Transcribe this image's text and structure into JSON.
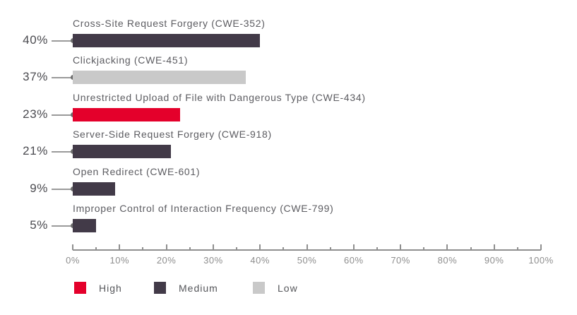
{
  "chart_data": {
    "type": "bar",
    "orientation": "horizontal",
    "title": "",
    "xlabel": "",
    "ylabel": "",
    "xlim": [
      0,
      100
    ],
    "x_tick_labels": [
      "0%",
      "10%",
      "20%",
      "30%",
      "40%",
      "50%",
      "60%",
      "70%",
      "80%",
      "90%",
      "100%"
    ],
    "x_tick_step": 10,
    "x_minor_tick_step": 5,
    "grid": false,
    "legend_position": "bottom",
    "categories": [
      "Cross-Site Request Forgery (CWE-352)",
      "Clickjacking (CWE-451)",
      "Unrestricted Upload of File with Dangerous Type (CWE-434)",
      "Server-Side Request Forgery (CWE-918)",
      "Open Redirect (CWE-601)",
      "Improper Control of Interaction Frequency (CWE-799)"
    ],
    "values": [
      40,
      37,
      23,
      21,
      9,
      5
    ],
    "bars": [
      {
        "label": "Cross-Site Request Forgery (CWE-352)",
        "value": 40,
        "value_label": "40%",
        "severity": "Medium"
      },
      {
        "label": "Clickjacking (CWE-451)",
        "value": 37,
        "value_label": "37%",
        "severity": "Low"
      },
      {
        "label": "Unrestricted Upload of File with Dangerous Type (CWE-434)",
        "value": 23,
        "value_label": "23%",
        "severity": "High"
      },
      {
        "label": "Server-Side Request Forgery (CWE-918)",
        "value": 21,
        "value_label": "21%",
        "severity": "Medium"
      },
      {
        "label": "Open Redirect (CWE-601)",
        "value": 9,
        "value_label": "9%",
        "severity": "Medium"
      },
      {
        "label": "Improper Control of Interaction Frequency (CWE-799)",
        "value": 5,
        "value_label": "5%",
        "severity": "Medium"
      }
    ],
    "legend": [
      {
        "label": "High",
        "color": "#e4002b"
      },
      {
        "label": "Medium",
        "color": "#423a48"
      },
      {
        "label": "Low",
        "color": "#c9c9c9"
      }
    ],
    "colors": {
      "high": "#e4002b",
      "medium": "#423a48",
      "low": "#c9c9c9",
      "axis": "#8f8f8f",
      "leader_line": "#9a9a9a",
      "leader_dot": "#6d6d6d",
      "category_text": "#5c5c61",
      "value_text": "#4b4b50",
      "tick_text": "#8e8e8e",
      "legend_text": "#55565a"
    }
  }
}
